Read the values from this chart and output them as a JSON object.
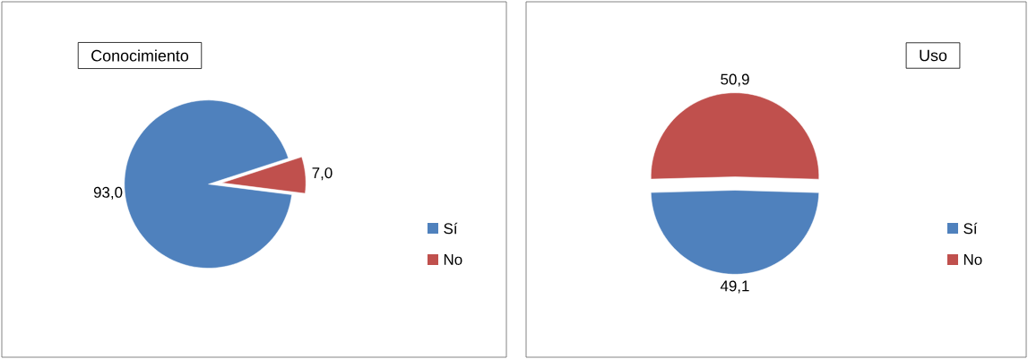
{
  "chart_data": [
    {
      "type": "pie",
      "title": "Conocimiento",
      "categories": [
        "Sí",
        "No"
      ],
      "values": [
        93.0,
        7.0
      ],
      "colors": [
        "#4f81bd",
        "#c0504d"
      ],
      "value_labels": [
        "93,0",
        "7,0"
      ],
      "legend": "right"
    },
    {
      "type": "pie",
      "title": "Uso",
      "categories": [
        "Sí",
        "No"
      ],
      "values": [
        49.1,
        50.9
      ],
      "colors": [
        "#4f81bd",
        "#c0504d"
      ],
      "value_labels": [
        "49,1",
        "50,9"
      ],
      "legend": "right"
    }
  ]
}
